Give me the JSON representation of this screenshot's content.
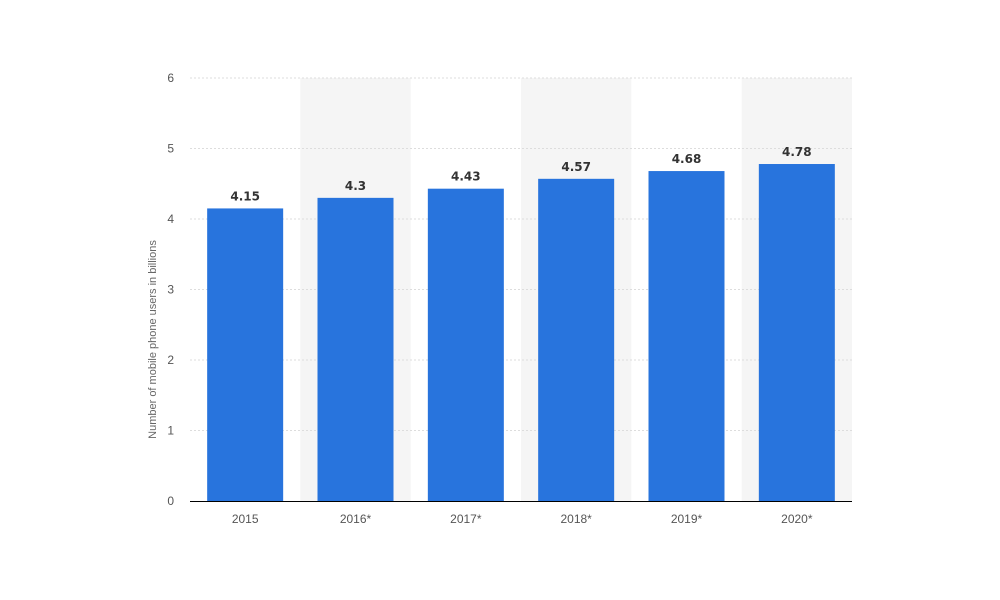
{
  "chart_data": {
    "type": "bar",
    "categories": [
      "2015",
      "2016*",
      "2017*",
      "2018*",
      "2019*",
      "2020*"
    ],
    "values": [
      4.15,
      4.3,
      4.43,
      4.57,
      4.68,
      4.78
    ],
    "data_labels": [
      "4.15",
      "4.3",
      "4.43",
      "4.57",
      "4.68",
      "4.78"
    ],
    "title": "",
    "xlabel": "",
    "ylabel": "Number of mobile phone users in billions",
    "ylim": [
      0,
      6
    ],
    "yticks": [
      "0",
      "1",
      "2",
      "3",
      "4",
      "5",
      "6"
    ],
    "grid": true,
    "legend": "none",
    "bar_color": "#2874DD",
    "band_color": "#F5F5F5",
    "grid_color": "#DDDDDD",
    "axis_color": "#000000"
  }
}
